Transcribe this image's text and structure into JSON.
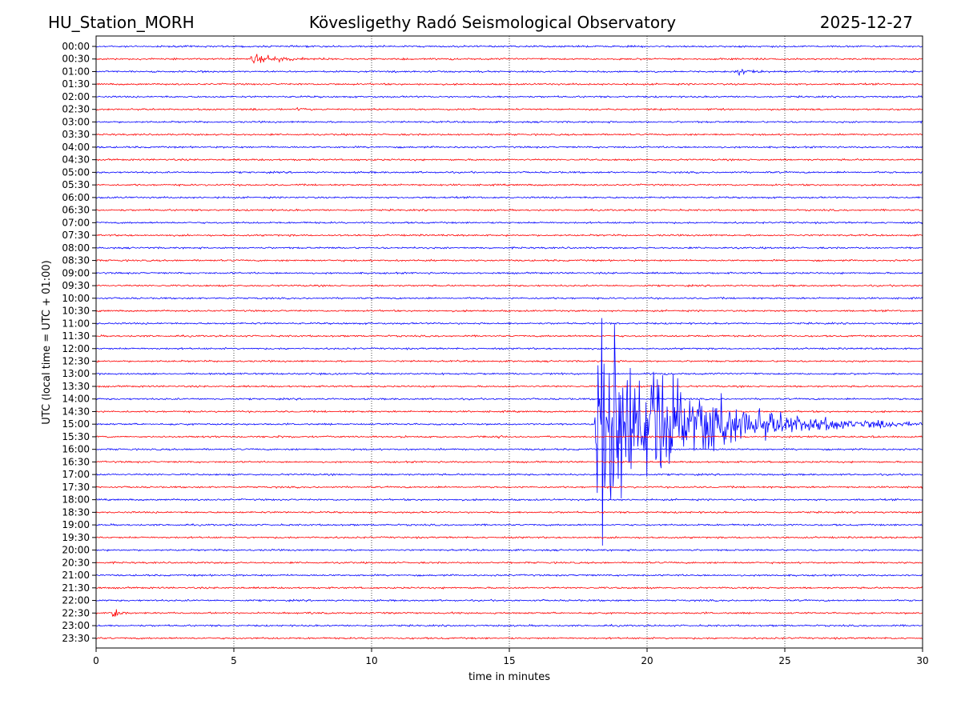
{
  "header": {
    "station": "HU_Station_MORH",
    "observatory": "Kövesligethy Radó Seismological Observatory",
    "date": "2025-12-27"
  },
  "chart_data": {
    "type": "line",
    "title": "Kövesligethy Radó Seismological Observatory",
    "xlabel": "time in minutes",
    "ylabel": "UTC (local time = UTC + 01:00)",
    "xlim": [
      0,
      30
    ],
    "x_ticks": [
      "0",
      "5",
      "10",
      "15",
      "20",
      "25",
      "30"
    ],
    "vertical_grid_at": [
      5,
      10,
      15,
      20,
      25
    ],
    "row_labels": [
      "00:00",
      "00:30",
      "01:00",
      "01:30",
      "02:00",
      "02:30",
      "03:00",
      "03:30",
      "04:00",
      "04:30",
      "05:00",
      "05:30",
      "06:00",
      "06:30",
      "07:00",
      "07:30",
      "08:00",
      "08:30",
      "09:00",
      "09:30",
      "10:00",
      "10:30",
      "11:00",
      "11:30",
      "12:00",
      "12:30",
      "13:00",
      "13:30",
      "14:00",
      "14:30",
      "15:00",
      "15:30",
      "16:00",
      "16:30",
      "17:00",
      "17:30",
      "18:00",
      "18:30",
      "19:00",
      "19:30",
      "20:00",
      "20:30",
      "21:00",
      "21:30",
      "22:00",
      "22:30",
      "23:00",
      "23:30"
    ],
    "trace_colors": [
      "#0000ff",
      "#ff0000"
    ],
    "events": [
      {
        "row": "00:30",
        "start_min": 5.5,
        "end_min": 9.5,
        "amplitude": 1.1,
        "color": "#ff0000"
      },
      {
        "row": "01:00",
        "start_min": 23.2,
        "end_min": 25.0,
        "amplitude": 0.8,
        "color": "#0000ff"
      },
      {
        "row": "02:30",
        "start_min": 7.2,
        "end_min": 8.3,
        "amplitude": 0.4,
        "color": "#ff0000"
      },
      {
        "row": "13:00",
        "start_min": 6.8,
        "end_min": 7.4,
        "amplitude": 0.3,
        "color": "#0000ff"
      },
      {
        "row": "15:00",
        "start_min": 18.1,
        "end_min": 30.0,
        "amplitude": 16,
        "color": "#0000ff"
      },
      {
        "row": "15:30",
        "start_min": 14.5,
        "end_min": 15.3,
        "amplitude": 0.5,
        "color": "#ff0000"
      },
      {
        "row": "15:30",
        "start_min": 6.5,
        "end_min": 8.5,
        "amplitude": 0.3,
        "color": "#ff0000"
      },
      {
        "row": "22:30",
        "start_min": 0.5,
        "end_min": 1.5,
        "amplitude": 1.5,
        "color": "#ff0000"
      }
    ]
  }
}
